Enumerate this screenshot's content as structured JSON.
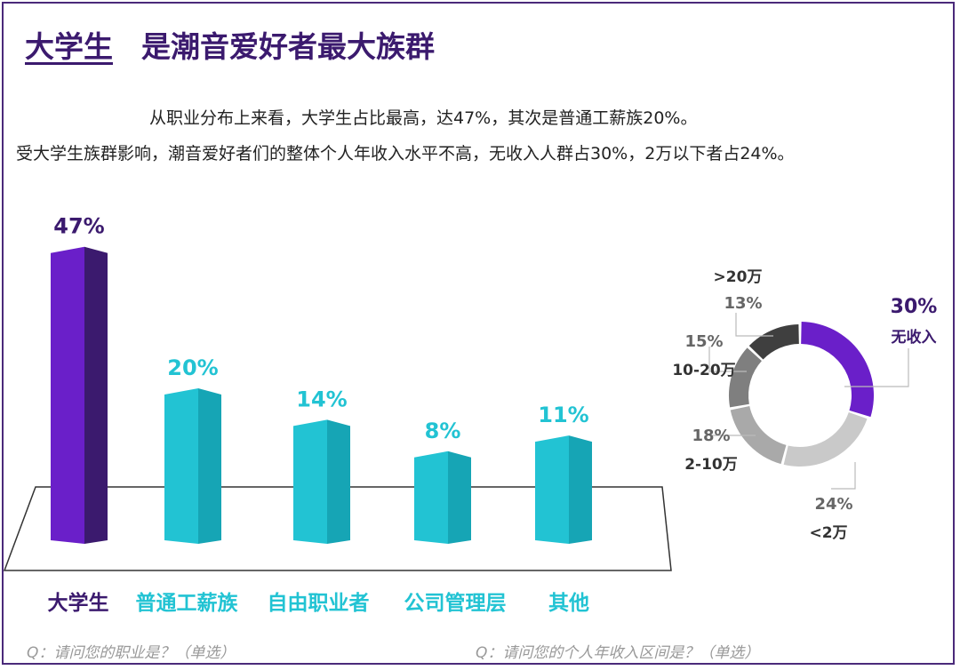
{
  "title": {
    "highlight": "大学生",
    "rest": "是潮音爱好者最大族群"
  },
  "subtitle_lines": [
    "从职业分布上来看，大学生占比最高，达47%，其次是普通工薪族20%。",
    "受大学生族群影响，潮音爱好者们的整体个人年收入水平不高，无收入人群占30%，2万以下者占24%。"
  ],
  "questions": {
    "occupation": "Q：请问您的职业是？（单选）",
    "income": "Q：请问您的个人年收入区间是？（单选）"
  },
  "colors": {
    "primary": "#6a1fc9",
    "primary_dark": "#3b1a6e",
    "teal": "#22c3d3",
    "teal_dark": "#16a5b5"
  },
  "chart_data": [
    {
      "type": "bar",
      "categories": [
        "大学生",
        "普通工薪族",
        "自由职业者",
        "公司管理层",
        "其他"
      ],
      "values": [
        47,
        20,
        14,
        8,
        11
      ],
      "data_labels": [
        "47%",
        "20%",
        "14%",
        "8%",
        "11%"
      ],
      "unit": "%"
    },
    {
      "type": "pie",
      "style": "donut",
      "categories": [
        "无收入",
        "<2万",
        "2-10万",
        "10-20万",
        ">20万"
      ],
      "values": [
        30,
        24,
        18,
        15,
        13
      ],
      "data_labels": [
        "30%",
        "24%",
        "18%",
        "15%",
        "13%"
      ],
      "colors": [
        "#6a1fc9",
        "#c9c9c9",
        "#a9a9a9",
        "#7f7f7f",
        "#3f3f3f"
      ]
    }
  ]
}
